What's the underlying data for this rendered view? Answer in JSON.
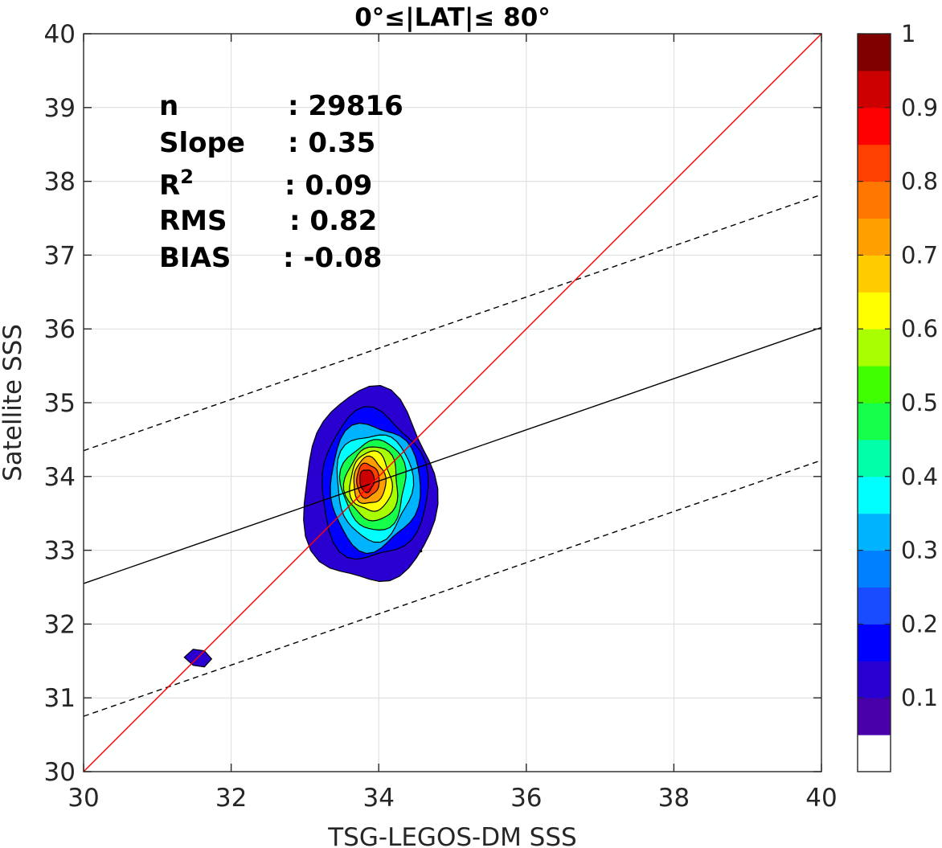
{
  "chart_data": {
    "type": "contour-scatter",
    "title": "0°≤|LAT|≤ 80°",
    "xlabel": "TSG-LEGOS-DM SSS",
    "ylabel": "Satellite SSS",
    "xlim": [
      30,
      40
    ],
    "ylim": [
      30,
      40
    ],
    "xticks": [
      "30",
      "32",
      "34",
      "36",
      "38",
      "40"
    ],
    "yticks": [
      "30",
      "31",
      "32",
      "33",
      "34",
      "35",
      "36",
      "37",
      "38",
      "39",
      "40"
    ],
    "grid": true,
    "stats": [
      {
        "label": "n",
        "value": ": 29816"
      },
      {
        "label": "Slope",
        "value": ": 0.35"
      },
      {
        "label": "R",
        "sup": "2",
        "value": ": 0.09"
      },
      {
        "label": "RMS",
        "value": ": 0.82"
      },
      {
        "label": "BIAS",
        "value": ": -0.08"
      }
    ],
    "lines": {
      "identity": {
        "color": "#ff0000",
        "x": [
          30,
          40
        ],
        "y": [
          30,
          40
        ]
      },
      "regression": {
        "color": "#000000",
        "x": [
          30,
          40
        ],
        "y": [
          32.55,
          36.02
        ]
      },
      "upper_bound": {
        "color": "#000000",
        "style": "dashed",
        "x": [
          30,
          40
        ],
        "y": [
          34.35,
          37.82
        ]
      },
      "lower_bound": {
        "color": "#000000",
        "style": "dashed",
        "x": [
          30,
          40
        ],
        "y": [
          30.75,
          34.22
        ]
      }
    },
    "density_peak": {
      "x": 33.85,
      "y": 33.88
    },
    "secondary_blob": {
      "x": 31.55,
      "y": 31.55
    },
    "colorbar": {
      "range": [
        0,
        1
      ],
      "tick_labels": [
        "0.1",
        "0.2",
        "0.3",
        "0.4",
        "0.5",
        "0.6",
        "0.7",
        "0.8",
        "0.9",
        "1"
      ],
      "colors": [
        "#ffffff",
        "#4a00a8",
        "#2a00d0",
        "#0000ff",
        "#1a4cff",
        "#007fff",
        "#00b3ff",
        "#00ffff",
        "#00ffa8",
        "#16ff4a",
        "#3fff00",
        "#a8ff00",
        "#ffff00",
        "#ffcc00",
        "#ffa000",
        "#ff7700",
        "#ff4000",
        "#ff0000",
        "#cc0000",
        "#800000"
      ]
    }
  }
}
